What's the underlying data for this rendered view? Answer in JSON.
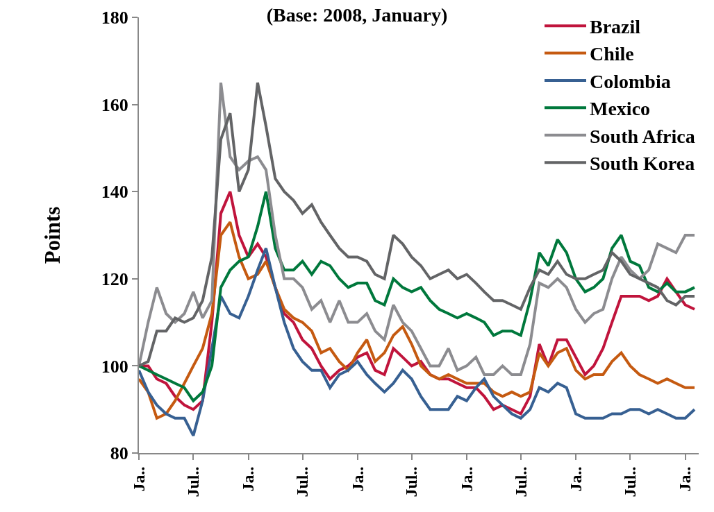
{
  "chart_data": {
    "type": "line",
    "title": "(Base: 2008, January)",
    "ylabel": "Points",
    "x": [
      "2008-01",
      "2008-02",
      "2008-03",
      "2008-04",
      "2008-05",
      "2008-06",
      "2008-07",
      "2008-08",
      "2008-09",
      "2008-10",
      "2008-11",
      "2008-12",
      "2009-01",
      "2009-02",
      "2009-03",
      "2009-04",
      "2009-05",
      "2009-06",
      "2009-07",
      "2009-08",
      "2009-09",
      "2009-10",
      "2009-11",
      "2009-12",
      "2010-01",
      "2010-02",
      "2010-03",
      "2010-04",
      "2010-05",
      "2010-06",
      "2010-07",
      "2010-08",
      "2010-09",
      "2010-10",
      "2010-11",
      "2010-12",
      "2011-01",
      "2011-02",
      "2011-03",
      "2011-04",
      "2011-05",
      "2011-06",
      "2011-07",
      "2011-08",
      "2011-09",
      "2011-10",
      "2011-11",
      "2011-12",
      "2012-01",
      "2012-02",
      "2012-03",
      "2012-04",
      "2012-05",
      "2012-06",
      "2012-07",
      "2012-08",
      "2012-09",
      "2012-10",
      "2012-11",
      "2012-12",
      "2013-01",
      "2013-02"
    ],
    "series": [
      {
        "name": "Brazil",
        "color": "#c0143c",
        "values": [
          100,
          100,
          97,
          96,
          93,
          91,
          90,
          92,
          110,
          135,
          140,
          130,
          125,
          128,
          125,
          118,
          112,
          110,
          106,
          104,
          100,
          97,
          99,
          100,
          102,
          103,
          99,
          98,
          104,
          102,
          100,
          101,
          98,
          97,
          97,
          96,
          95,
          95,
          93,
          90,
          91,
          90,
          89,
          93,
          105,
          100,
          106,
          106,
          102,
          98,
          100,
          104,
          110,
          116,
          116,
          116,
          115,
          116,
          120,
          117,
          114,
          113
        ]
      },
      {
        "name": "Chile",
        "color": "#c55a11",
        "values": [
          97,
          94,
          88,
          89,
          92,
          96,
          100,
          104,
          112,
          130,
          133,
          125,
          120,
          121,
          124,
          118,
          113,
          111,
          110,
          108,
          103,
          104,
          101,
          99,
          103,
          106,
          101,
          103,
          107,
          109,
          105,
          100,
          98,
          97,
          98,
          97,
          96,
          96,
          96,
          94,
          93,
          94,
          93,
          94,
          103,
          100,
          103,
          104,
          99,
          97,
          98,
          98,
          101,
          103,
          100,
          98,
          97,
          96,
          97,
          96,
          95,
          95
        ]
      },
      {
        "name": "Colombia",
        "color": "#376092",
        "values": [
          99,
          94,
          91,
          89,
          88,
          88,
          84,
          92,
          104,
          116,
          112,
          111,
          116,
          122,
          127,
          118,
          110,
          104,
          101,
          99,
          99,
          95,
          98,
          99,
          101,
          98,
          96,
          94,
          96,
          99,
          97,
          93,
          90,
          90,
          90,
          93,
          92,
          95,
          97,
          93,
          91,
          89,
          88,
          90,
          95,
          94,
          96,
          95,
          89,
          88,
          88,
          88,
          89,
          89,
          90,
          90,
          89,
          90,
          89,
          88,
          88,
          90
        ]
      },
      {
        "name": "Mexico",
        "color": "#00783c",
        "values": [
          100,
          99,
          98,
          97,
          96,
          95,
          92,
          94,
          100,
          118,
          122,
          124,
          125,
          132,
          140,
          127,
          122,
          122,
          124,
          121,
          124,
          123,
          120,
          118,
          119,
          119,
          115,
          114,
          120,
          118,
          117,
          118,
          115,
          113,
          112,
          111,
          112,
          111,
          110,
          107,
          108,
          108,
          107,
          115,
          126,
          123,
          129,
          126,
          120,
          117,
          118,
          120,
          127,
          130,
          124,
          123,
          118,
          117,
          119,
          117,
          117,
          118
        ]
      },
      {
        "name": "South Africa",
        "color": "#8c8c90",
        "values": [
          100,
          110,
          118,
          112,
          110,
          112,
          117,
          111,
          115,
          165,
          148,
          145,
          147,
          148,
          145,
          130,
          120,
          120,
          118,
          113,
          115,
          110,
          115,
          110,
          110,
          112,
          108,
          106,
          114,
          110,
          108,
          104,
          100,
          100,
          104,
          99,
          100,
          102,
          98,
          98,
          100,
          98,
          98,
          105,
          119,
          118,
          120,
          118,
          113,
          110,
          112,
          113,
          120,
          125,
          122,
          120,
          122,
          128,
          127,
          126,
          130,
          130
        ]
      },
      {
        "name": "South Korea",
        "color": "#636466",
        "values": [
          100,
          101,
          108,
          108,
          111,
          110,
          111,
          115,
          125,
          152,
          158,
          140,
          145,
          165,
          155,
          143,
          140,
          138,
          135,
          137,
          133,
          130,
          127,
          125,
          125,
          124,
          121,
          120,
          130,
          128,
          125,
          123,
          120,
          121,
          122,
          120,
          121,
          119,
          117,
          115,
          115,
          114,
          113,
          118,
          122,
          121,
          124,
          121,
          120,
          120,
          121,
          122,
          126,
          124,
          121,
          120,
          119,
          118,
          115,
          114,
          116,
          116
        ]
      }
    ],
    "xlim": [
      "2008-01-01",
      "2013-02-15"
    ],
    "xticks": [
      {
        "value": "2008-01",
        "label": "Ja.."
      },
      {
        "value": "2008-07",
        "label": "Jul.."
      },
      {
        "value": "2009-01",
        "label": "Ja.."
      },
      {
        "value": "2009-07",
        "label": "Jul.."
      },
      {
        "value": "2010-01",
        "label": "Ja.."
      },
      {
        "value": "2010-07",
        "label": "Jul.."
      },
      {
        "value": "2011-01",
        "label": "Ja.."
      },
      {
        "value": "2011-07",
        "label": "Jul.."
      },
      {
        "value": "2012-01",
        "label": "Ja.."
      },
      {
        "value": "2012-07",
        "label": "Jul.."
      },
      {
        "value": "2013-01",
        "label": "Ja.."
      }
    ],
    "ylim": [
      80,
      180
    ],
    "yticks": [
      80,
      100,
      120,
      140,
      160,
      180
    ],
    "legend": "top right",
    "marker": "none",
    "line_style": "solid"
  }
}
